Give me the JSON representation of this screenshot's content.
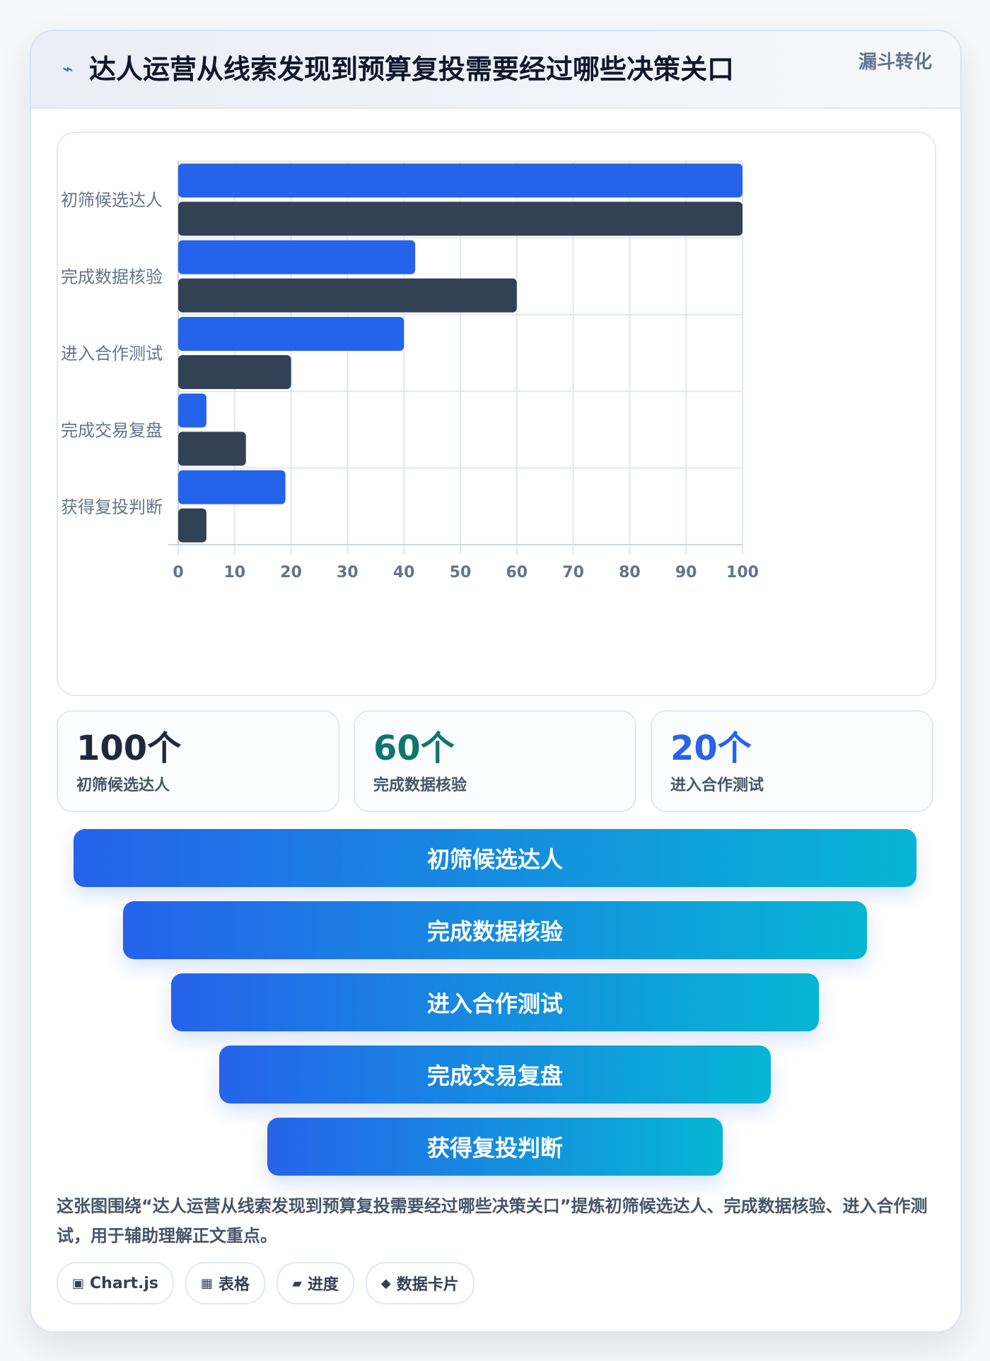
{
  "header": {
    "icon": "lightning-icon",
    "title": "达人运营从线索发现到预算复投需要经过哪些决策关口",
    "tag": "漏斗转化"
  },
  "colors": {
    "series_a": "#2563eb",
    "series_b": "#334155",
    "accent_teal": "#0f766e",
    "accent_blue": "#2563eb",
    "dark": "#1e293b"
  },
  "chart_data": {
    "type": "bar",
    "orientation": "horizontal",
    "categories": [
      "初筛候选达人",
      "完成数据核验",
      "进入合作测试",
      "完成交易复盘",
      "获得复投判断"
    ],
    "series": [
      {
        "values": [
          100,
          42,
          40,
          5,
          19
        ]
      },
      {
        "values": [
          100,
          60,
          20,
          12,
          5
        ]
      }
    ],
    "xlim": [
      0,
      100
    ],
    "xticks": [
      0,
      10,
      20,
      30,
      40,
      50,
      60,
      70,
      80,
      90,
      100
    ],
    "grid": true
  },
  "stats": [
    {
      "value": "100个",
      "label": "初筛候选达人"
    },
    {
      "value": "60个",
      "label": "完成数据核验"
    },
    {
      "value": "20个",
      "label": "进入合作测试"
    }
  ],
  "funnel": [
    "初筛候选达人",
    "完成数据核验",
    "进入合作测试",
    "完成交易复盘",
    "获得复投判断"
  ],
  "description": "这张图围绕“达人运营从线索发现到预算复投需要经过哪些决策关口”提炼初筛候选达人、完成数据核验、进入合作测试，用于辅助理解正文重点。",
  "chips": [
    {
      "icon": "chart-icon",
      "glyph": "▣",
      "label": "Chart.js"
    },
    {
      "icon": "table-icon",
      "glyph": "▦",
      "label": "表格"
    },
    {
      "icon": "progress-icon",
      "glyph": "▰",
      "label": "进度"
    },
    {
      "icon": "diamond-icon",
      "glyph": "◆",
      "label": "数据卡片"
    }
  ]
}
